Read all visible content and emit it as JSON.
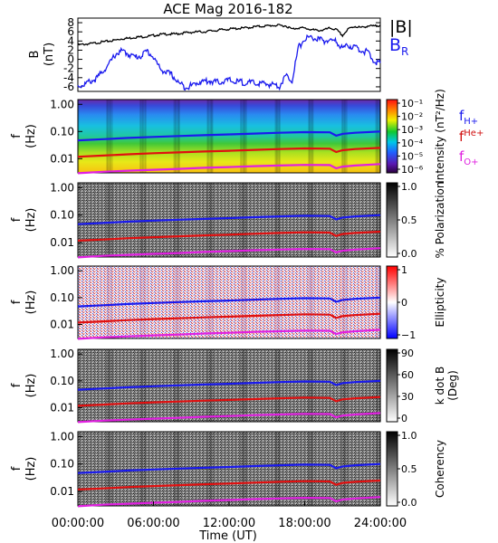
{
  "figure": {
    "title": "ACE Mag 2016-182",
    "time_label": "Time (UT)",
    "time_ticks": [
      "00:00:00",
      "06:00:00",
      "12:00:00",
      "18:00:00",
      "24:00:00"
    ]
  },
  "chart_data": [
    {
      "type": "line",
      "panel": "B",
      "ylabel_top": "B",
      "ylabel_bottom": "(nT)",
      "ylim": [
        -7,
        9
      ],
      "y_ticks": [
        "8",
        "6",
        "4",
        "2",
        "0",
        "-2",
        "-4",
        "-6"
      ],
      "x_hours": [
        0,
        0.5,
        1,
        1.5,
        2,
        2.5,
        3,
        3.5,
        4,
        4.5,
        5,
        5.5,
        6,
        6.5,
        7,
        7.5,
        8,
        8.5,
        9,
        9.5,
        10,
        10.5,
        11,
        11.5,
        12,
        12.5,
        13,
        13.5,
        14,
        14.5,
        15,
        15.5,
        16,
        16.5,
        17,
        17.5,
        18,
        18.5,
        19,
        19.5,
        20,
        20.5,
        21,
        21.5,
        22,
        22.5,
        23,
        23.5,
        24
      ],
      "series": [
        {
          "name": "|B|",
          "color": "#000000",
          "values": [
            3.1,
            3.3,
            3.4,
            3.6,
            3.8,
            4.0,
            4.2,
            4.5,
            4.6,
            4.8,
            4.9,
            5.0,
            5.2,
            5.4,
            5.5,
            5.5,
            5.6,
            5.8,
            5.9,
            6.0,
            6.0,
            6.2,
            6.3,
            6.5,
            6.6,
            6.7,
            6.8,
            6.9,
            7.1,
            7.2,
            7.3,
            7.4,
            7.4,
            7.3,
            6.6,
            6.9,
            6.8,
            6.5,
            6.3,
            6.4,
            6.8,
            6.5,
            5.2,
            6.7,
            7.2,
            6.9,
            7.3,
            7.2,
            7.5
          ]
        },
        {
          "name": "B_R",
          "color": "#1a1aee",
          "values": [
            -5.8,
            -5.5,
            -4.8,
            -4.2,
            -2.5,
            -1.0,
            1.2,
            1.8,
            1.2,
            0.5,
            0.8,
            1.8,
            0.5,
            -2.0,
            -2.8,
            -3.5,
            -5.2,
            -6.0,
            -5.8,
            -5.0,
            -4.8,
            -4.7,
            -5.0,
            -4.8,
            -4.6,
            -4.9,
            -5.0,
            -5.1,
            -5.2,
            -5.3,
            -5.4,
            -5.5,
            -5.8,
            -3.6,
            -4.5,
            2.5,
            4.5,
            4.8,
            4.4,
            4.0,
            4.2,
            3.8,
            2.5,
            3.0,
            2.6,
            2.0,
            1.5,
            -0.5,
            -0.8
          ]
        }
      ],
      "legend": [
        {
          "label": "|B|",
          "color": "#000000"
        },
        {
          "label": "B",
          "sub": "R",
          "color": "#1a1aee"
        }
      ]
    },
    {
      "type": "heatmap",
      "panel": "intensity",
      "ylabel_top": "f",
      "ylabel_bottom": "(Hz)",
      "y_scale": "log",
      "ylim": [
        0.003,
        1.5
      ],
      "y_ticks": [
        "1.00",
        "0.10",
        "0.01"
      ],
      "colorbar_label": "Intensity (nT²/Hz)",
      "colorbar_ticks": [
        "10⁻¹",
        "10⁻²",
        "10⁻³",
        "10⁻⁴",
        "10⁻⁵",
        "10⁻⁶"
      ],
      "colormap": "rainbow"
    },
    {
      "type": "heatmap",
      "panel": "polarization",
      "ylabel_top": "f",
      "ylabel_bottom": "(Hz)",
      "y_scale": "log",
      "ylim": [
        0.003,
        1.5
      ],
      "y_ticks": [
        "1.00",
        "0.10",
        "0.01"
      ],
      "colorbar_label": "% Polarization",
      "colorbar_ticks": [
        "1.0",
        "0.5",
        "0.0"
      ],
      "colormap": "gray"
    },
    {
      "type": "heatmap",
      "panel": "ellipticity",
      "ylabel_top": "f",
      "ylabel_bottom": "(Hz)",
      "y_scale": "log",
      "ylim": [
        0.003,
        1.5
      ],
      "y_ticks": [
        "1.00",
        "0.10",
        "0.01"
      ],
      "colorbar_label": "Ellipticity",
      "colorbar_ticks": [
        "1",
        "0",
        "−1"
      ],
      "colormap": "blue-white-red"
    },
    {
      "type": "heatmap",
      "panel": "k_dot_b",
      "ylabel_top": "f",
      "ylabel_bottom": "(Hz)",
      "y_scale": "log",
      "ylim": [
        0.003,
        1.5
      ],
      "y_ticks": [
        "1.00",
        "0.10",
        "0.01"
      ],
      "colorbar_label": "k dot B",
      "colorbar_label2": "(Deg)",
      "colorbar_ticks": [
        "90",
        "60",
        "30",
        "0"
      ],
      "colormap": "gray"
    },
    {
      "type": "heatmap",
      "panel": "coherency",
      "ylabel_top": "f",
      "ylabel_bottom": "(Hz)",
      "y_scale": "log",
      "ylim": [
        0.003,
        1.5
      ],
      "y_ticks": [
        "1.00",
        "0.10",
        "0.01"
      ],
      "colorbar_label": "Coherency",
      "colorbar_ticks": [
        "1.0",
        "0.5",
        "0.0"
      ],
      "colormap": "gray"
    }
  ],
  "gyro_lines": {
    "x_hours": [
      0,
      2,
      4,
      6,
      8,
      10,
      12,
      14,
      16,
      18,
      20,
      20.5,
      21,
      22,
      24
    ],
    "series": [
      {
        "label": "f",
        "sub": "H+",
        "color": "#1a1aee",
        "values": [
          0.047,
          0.052,
          0.058,
          0.063,
          0.068,
          0.073,
          0.078,
          0.084,
          0.09,
          0.095,
          0.093,
          0.07,
          0.082,
          0.09,
          0.1
        ]
      },
      {
        "label": "f",
        "sub": "He+",
        "color": "#e01010",
        "values": [
          0.0118,
          0.013,
          0.0145,
          0.0158,
          0.017,
          0.0183,
          0.0195,
          0.021,
          0.0225,
          0.0238,
          0.0232,
          0.0175,
          0.0205,
          0.0225,
          0.025
        ]
      },
      {
        "label": "f",
        "sub": "O+",
        "color": "#e020e0",
        "values": [
          0.0029,
          0.0033,
          0.0036,
          0.0039,
          0.0042,
          0.0046,
          0.0049,
          0.0053,
          0.0056,
          0.0059,
          0.0058,
          0.0044,
          0.0051,
          0.0056,
          0.0063
        ]
      }
    ]
  }
}
